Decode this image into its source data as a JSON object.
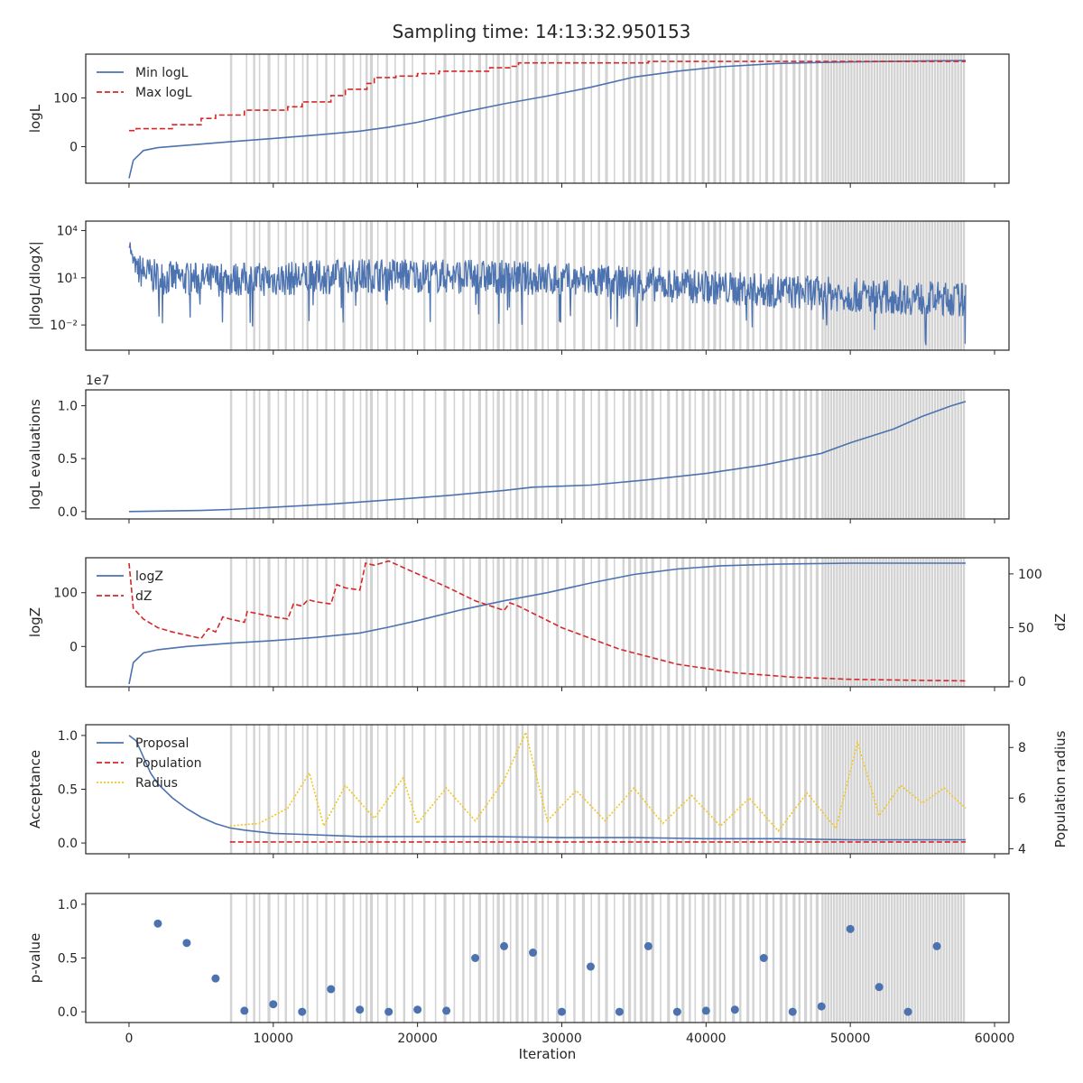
{
  "figure": {
    "title": "Sampling time: 14:13:32.950153"
  },
  "colors": {
    "blue": "#4c72b0",
    "red": "#d62728",
    "yellow": "#f5c518",
    "shade": "#d3d3d3",
    "axis": "#262626"
  },
  "chart_data": [
    {
      "type": "line",
      "ylabel": "logL",
      "xlim": [
        -3000,
        61000
      ],
      "ylim": [
        -75,
        190
      ],
      "yticks": [
        0,
        100
      ],
      "ytick_labels": [
        "0",
        "100"
      ],
      "legend": [
        "Min logL",
        "Max logL"
      ],
      "legend_position": "top-left",
      "series": [
        {
          "name": "Min logL",
          "style": "solid",
          "color": "blue",
          "x": [
            0,
            300,
            1000,
            2000,
            4000,
            7000,
            10000,
            13000,
            16000,
            18000,
            20000,
            23000,
            26000,
            29000,
            32000,
            35000,
            38000,
            41000,
            45000,
            50000,
            55000,
            58000
          ],
          "y": [
            -65,
            -28,
            -8,
            -2,
            3,
            10,
            17,
            24,
            32,
            40,
            50,
            70,
            88,
            104,
            122,
            143,
            155,
            164,
            171,
            174,
            176,
            177
          ]
        },
        {
          "name": "Max logL",
          "style": "dashed",
          "color": "red",
          "x": [
            0,
            500,
            500,
            3000,
            3000,
            5000,
            5000,
            6000,
            6000,
            8000,
            8000,
            11000,
            11000,
            12000,
            12000,
            14000,
            14000,
            15000,
            15000,
            16500,
            16500,
            17000,
            17000,
            18500,
            18500,
            20000,
            20000,
            21500,
            21500,
            25000,
            25000,
            26500,
            26500,
            27000,
            27000,
            36000,
            36000,
            58000
          ],
          "y": [
            33,
            33,
            37,
            37,
            45,
            45,
            58,
            58,
            65,
            65,
            75,
            75,
            82,
            82,
            92,
            92,
            105,
            105,
            118,
            118,
            130,
            130,
            142,
            142,
            145,
            145,
            150,
            150,
            155,
            155,
            162,
            162,
            165,
            165,
            172,
            172,
            175,
            175
          ]
        }
      ]
    },
    {
      "type": "line",
      "ylabel": "|dlogL/dlogX|",
      "xlim": [
        -3000,
        61000
      ],
      "yscale": "log",
      "ylim_log10": [
        -3.6,
        4.6
      ],
      "yticks_log10": [
        -2,
        1,
        4
      ],
      "ytick_labels": [
        "10⁻²",
        "10¹",
        "10⁴"
      ],
      "series": [
        {
          "name": "",
          "style": "solid",
          "color": "blue",
          "x": [
            0,
            200,
            600,
            2000,
            5000,
            10000,
            15000,
            18000,
            22000,
            27000,
            32000,
            38000,
            44000,
            50000,
            55000,
            58000
          ],
          "y_log10_center": [
            3.5,
            2.2,
            1.5,
            1.0,
            0.9,
            0.9,
            1.1,
            1.2,
            1.1,
            1.0,
            0.8,
            0.5,
            0.2,
            -0.1,
            -0.3,
            -0.4
          ]
        }
      ]
    },
    {
      "type": "line",
      "ylabel": "logL evaluations",
      "offset_label": "1e7",
      "xlim": [
        -3000,
        61000
      ],
      "ylim": [
        -0.07,
        1.15
      ],
      "yticks": [
        0.0,
        0.5,
        1.0
      ],
      "ytick_labels": [
        "0.0",
        "0.5",
        "1.0"
      ],
      "series": [
        {
          "name": "",
          "style": "solid",
          "color": "blue",
          "x": [
            0,
            5000,
            7000,
            10000,
            14000,
            18000,
            22000,
            26000,
            28000,
            32000,
            36000,
            40000,
            44000,
            48000,
            50000,
            53000,
            55000,
            57000,
            58000
          ],
          "y": [
            0.0,
            0.01,
            0.02,
            0.04,
            0.07,
            0.11,
            0.15,
            0.2,
            0.23,
            0.25,
            0.3,
            0.36,
            0.44,
            0.55,
            0.65,
            0.78,
            0.9,
            1.0,
            1.04
          ]
        }
      ]
    },
    {
      "type": "line",
      "ylabel": "logZ",
      "ylabel_right": "dZ",
      "xlim": [
        -3000,
        61000
      ],
      "ylim": [
        -75,
        165
      ],
      "ylim_right": [
        -5,
        115
      ],
      "yticks": [
        0,
        100
      ],
      "ytick_labels": [
        "0",
        "100"
      ],
      "yticks_right": [
        0,
        50,
        100
      ],
      "ytick_labels_right": [
        "0",
        "50",
        "100"
      ],
      "legend": [
        "logZ",
        "dZ"
      ],
      "legend_position": "top-left",
      "series": [
        {
          "name": "logZ",
          "style": "solid",
          "color": "blue",
          "axis": "left",
          "x": [
            0,
            300,
            1000,
            2000,
            4000,
            7000,
            10000,
            13000,
            16000,
            18000,
            20000,
            23000,
            26000,
            29000,
            32000,
            35000,
            38000,
            41000,
            45000,
            50000,
            55000,
            58000
          ],
          "y": [
            -70,
            -30,
            -12,
            -6,
            0,
            6,
            11,
            17,
            25,
            36,
            48,
            68,
            85,
            100,
            118,
            134,
            144,
            150,
            153,
            155,
            155,
            155
          ]
        },
        {
          "name": "dZ",
          "style": "dashed",
          "color": "red",
          "axis": "right",
          "x": [
            0,
            300,
            1000,
            2000,
            3000,
            4000,
            5000,
            5500,
            6000,
            6500,
            7000,
            8000,
            8200,
            10000,
            11000,
            11400,
            12000,
            12400,
            13000,
            14000,
            14400,
            15000,
            16000,
            16400,
            17000,
            18000,
            20000,
            22000,
            24000,
            26000,
            26400,
            27000,
            30000,
            34000,
            38000,
            42000,
            46000,
            50000,
            55000,
            58000
          ],
          "y": [
            110,
            68,
            58,
            50,
            46,
            43,
            40,
            49,
            46,
            60,
            58,
            55,
            65,
            60,
            58,
            72,
            70,
            76,
            74,
            72,
            90,
            87,
            85,
            110,
            108,
            112,
            100,
            88,
            75,
            66,
            73,
            70,
            50,
            30,
            16,
            8,
            4,
            2,
            1,
            0.5
          ]
        }
      ]
    },
    {
      "type": "line",
      "ylabel": "Acceptance",
      "ylabel_right": "Population radius",
      "xlim": [
        -3000,
        61000
      ],
      "ylim": [
        -0.1,
        1.1
      ],
      "ylim_right": [
        3.8,
        8.9
      ],
      "yticks": [
        0.0,
        0.5,
        1.0
      ],
      "ytick_labels": [
        "0.0",
        "0.5",
        "1.0"
      ],
      "yticks_right": [
        4,
        6,
        8
      ],
      "ytick_labels_right": [
        "4",
        "6",
        "8"
      ],
      "legend": [
        "Proposal",
        "Population",
        "Radius"
      ],
      "legend_position": "top-left",
      "series": [
        {
          "name": "Proposal",
          "style": "solid",
          "color": "blue",
          "axis": "left",
          "x": [
            0,
            500,
            1000,
            1500,
            2000,
            3000,
            4000,
            5000,
            6000,
            7000,
            8000,
            10000,
            12000,
            14000,
            16000,
            20000,
            25000,
            30000,
            35000,
            40000,
            45000,
            50000,
            55000,
            58000
          ],
          "y": [
            1.0,
            0.95,
            0.8,
            0.65,
            0.55,
            0.42,
            0.32,
            0.24,
            0.18,
            0.14,
            0.12,
            0.09,
            0.08,
            0.07,
            0.06,
            0.06,
            0.06,
            0.05,
            0.05,
            0.04,
            0.04,
            0.03,
            0.03,
            0.03
          ]
        },
        {
          "name": "Population",
          "style": "dashed",
          "color": "red",
          "axis": "left",
          "x": [
            7000,
            20000,
            40000,
            58000
          ],
          "y": [
            0.01,
            0.01,
            0.01,
            0.01
          ]
        },
        {
          "name": "Radius",
          "style": "dotted",
          "color": "yellow",
          "axis": "right",
          "x": [
            7000,
            9000,
            11000,
            12500,
            13500,
            15000,
            17000,
            19000,
            20000,
            22000,
            24000,
            26000,
            27500,
            29000,
            31000,
            33000,
            35000,
            37000,
            39000,
            41000,
            43000,
            45000,
            47000,
            49000,
            50500,
            52000,
            53500,
            55000,
            56500,
            58000
          ],
          "y": [
            4.9,
            5.0,
            5.6,
            7.0,
            4.9,
            6.5,
            5.2,
            6.8,
            5.0,
            6.4,
            5.1,
            6.7,
            8.6,
            5.1,
            6.3,
            5.1,
            6.4,
            5.0,
            6.1,
            4.9,
            6.0,
            4.7,
            6.2,
            4.8,
            8.2,
            5.3,
            6.5,
            5.8,
            6.4,
            5.6
          ]
        }
      ]
    },
    {
      "type": "scatter",
      "ylabel": "p-value",
      "xlabel": "Iteration",
      "xlim": [
        -3000,
        61000
      ],
      "ylim": [
        -0.1,
        1.1
      ],
      "yticks": [
        0.0,
        0.5,
        1.0
      ],
      "ytick_labels": [
        "0.0",
        "0.5",
        "1.0"
      ],
      "xticks": [
        0,
        10000,
        20000,
        30000,
        40000,
        50000,
        60000
      ],
      "xtick_labels": [
        "0",
        "10000",
        "20000",
        "30000",
        "40000",
        "50000",
        "60000"
      ],
      "series": [
        {
          "name": "",
          "color": "blue",
          "x": [
            2000,
            4000,
            6000,
            8000,
            10000,
            12000,
            14000,
            16000,
            18000,
            20000,
            22000,
            24000,
            26000,
            28000,
            30000,
            32000,
            34000,
            36000,
            38000,
            40000,
            42000,
            44000,
            46000,
            48000,
            50000,
            52000,
            54000,
            56000
          ],
          "y": [
            0.82,
            0.64,
            0.31,
            0.01,
            0.07,
            0.0,
            0.21,
            0.02,
            0.0,
            0.02,
            0.01,
            0.5,
            0.61,
            0.55,
            0.0,
            0.42,
            0.0,
            0.61,
            0.0,
            0.01,
            0.02,
            0.5,
            0.0,
            0.05,
            0.77,
            0.23,
            0.0,
            0.61
          ]
        }
      ]
    }
  ],
  "shading": {
    "x": [
      7000,
      8100,
      8600,
      9000,
      9600,
      10300,
      10800,
      11400,
      12000,
      12300,
      13000,
      13600,
      14200,
      14800,
      15500,
      16000,
      16400,
      16700,
      17200,
      17800,
      18400,
      19000,
      19600,
      20400,
      21200,
      21800,
      22500,
      23100,
      23600,
      24200,
      24700,
      25200,
      25500,
      25900,
      26400,
      26800,
      27200,
      27600,
      28100,
      28600,
      29000,
      29600,
      30200,
      30800,
      31400,
      32000,
      32500,
      33000,
      33600,
      34200,
      34600,
      35000,
      35400,
      35800,
      36200,
      36800,
      37300,
      37900,
      38300,
      38800,
      39200,
      39700,
      40100,
      40500,
      40900,
      41300,
      41800,
      42300,
      42800,
      43200,
      43700,
      44100,
      44600,
      45100,
      45500,
      46000,
      46400,
      46800,
      47200,
      47600,
      48000,
      48200,
      48400,
      48600,
      48800,
      49000,
      49200,
      49400,
      49600,
      49800,
      50000,
      50200,
      50400,
      50600,
      50800,
      51000,
      51200,
      51400,
      51600,
      51800,
      52000,
      52200,
      52400,
      52600,
      52800,
      53000,
      53200,
      53400,
      53600,
      53800,
      54000,
      54200,
      54400,
      54600,
      54800,
      55000,
      55200,
      55400,
      55600,
      55800,
      56000,
      56200,
      56400,
      56600,
      56800,
      57000,
      57200,
      57400,
      57600,
      57800
    ],
    "w": [
      150,
      100,
      150,
      100,
      200,
      100,
      150,
      100,
      100,
      150,
      100,
      150,
      100,
      200,
      100,
      100,
      150,
      200,
      100,
      150,
      100,
      150,
      100,
      150,
      100,
      200,
      100,
      150,
      100,
      200,
      150,
      100,
      200,
      150,
      100,
      200,
      150,
      100,
      200,
      150,
      100,
      200,
      100,
      150,
      200,
      100,
      150,
      200,
      100,
      150,
      200,
      150,
      200,
      150,
      200,
      100,
      200,
      150,
      200,
      150,
      100,
      200,
      150,
      200,
      150,
      100,
      200,
      150,
      200,
      150,
      100,
      200,
      150,
      200,
      150,
      200,
      150,
      200,
      150,
      200,
      150,
      150,
      150,
      150,
      150,
      150,
      150,
      150,
      150,
      150,
      150,
      150,
      150,
      150,
      150,
      150,
      150,
      150,
      150,
      150,
      150,
      150,
      150,
      150,
      150,
      150,
      150,
      150,
      150,
      150,
      150,
      150,
      150,
      150,
      150,
      150,
      150,
      150,
      150,
      150,
      150,
      150,
      150,
      150,
      150,
      150,
      150,
      150,
      150,
      150
    ]
  }
}
